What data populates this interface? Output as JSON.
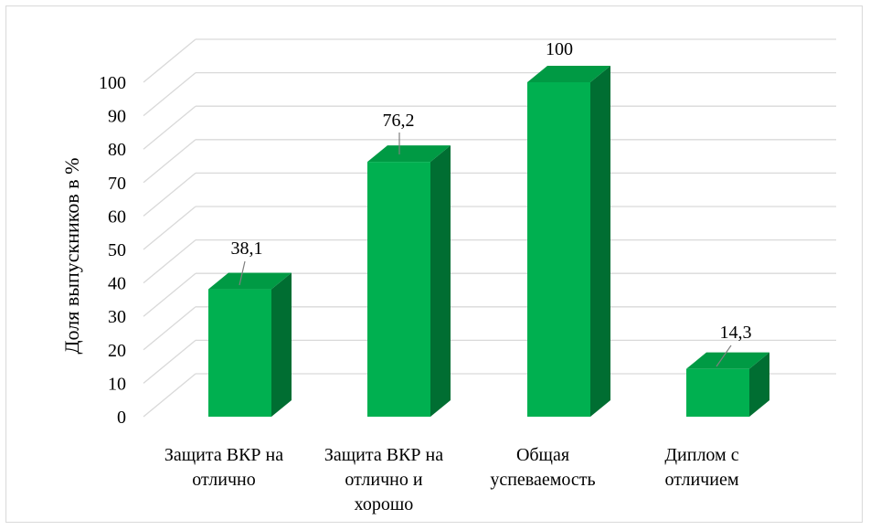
{
  "chart_data": {
    "type": "bar",
    "title": "",
    "xlabel": "",
    "ylabel": "Доля выпускников в %",
    "ylim": [
      0,
      100
    ],
    "yticks": [
      0,
      10,
      20,
      30,
      40,
      50,
      60,
      70,
      80,
      90,
      100
    ],
    "categories": [
      [
        "Защита ВКР на",
        "отлично"
      ],
      [
        "Защита ВКР на",
        "отлично и",
        "хорошо"
      ],
      [
        "Общая",
        "успеваемость"
      ],
      [
        "Диплом с",
        "отличием"
      ]
    ],
    "values": [
      38.1,
      76.2,
      100,
      14.3
    ],
    "data_labels": [
      "38,1",
      "76,2",
      "100",
      "14,3"
    ],
    "grid": true,
    "colors": {
      "bar_front": "#00b050",
      "bar_top": "#009a44",
      "bar_side": "#006e32",
      "grid": "#d9d9d9",
      "leader": "#7f7f7f"
    }
  }
}
